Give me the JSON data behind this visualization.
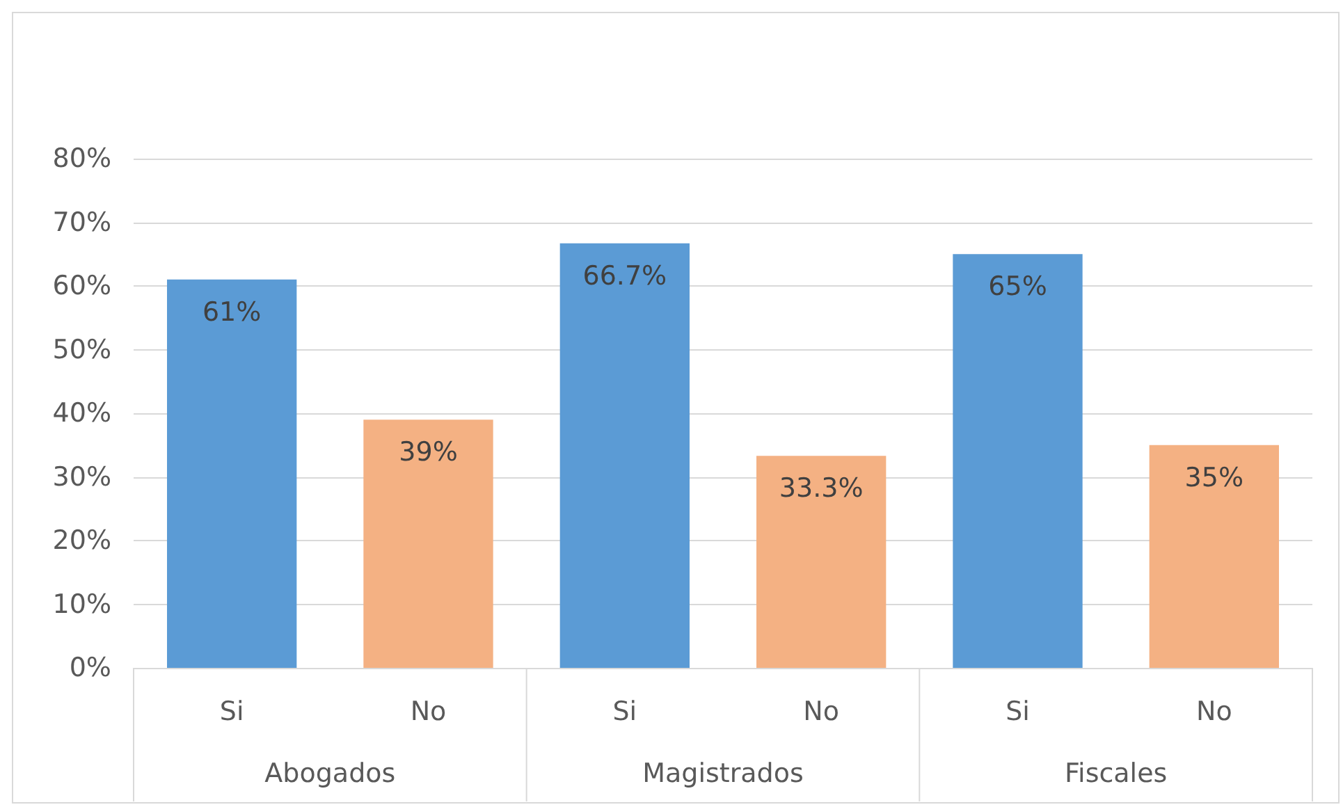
{
  "chart_data": {
    "type": "bar",
    "categories": [
      "Si",
      "No",
      "Si",
      "No",
      "Si",
      "No"
    ],
    "values": [
      61,
      39,
      66.7,
      33.3,
      65,
      35
    ],
    "colors": [
      "#5b9bd5",
      "#f4b183",
      "#5b9bd5",
      "#f4b183",
      "#5b9bd5",
      "#f4b183"
    ],
    "value_labels": [
      "61%",
      "39%",
      "66.7%",
      "33.3%",
      "65%",
      "35%"
    ],
    "annotations": [
      "Abogados",
      "Magistrados",
      "Fiscales"
    ],
    "ylim": [
      0,
      80
    ],
    "yticks": [
      {
        "value": 0,
        "label": "0%"
      },
      {
        "value": 10,
        "label": "10%"
      },
      {
        "value": 20,
        "label": "20%"
      },
      {
        "value": 30,
        "label": "30%"
      },
      {
        "value": 40,
        "label": "40%"
      },
      {
        "value": 50,
        "label": "50%"
      },
      {
        "value": 60,
        "label": "60%"
      },
      {
        "value": 70,
        "label": "70%"
      },
      {
        "value": 80,
        "label": "80%"
      }
    ],
    "grid": "y"
  }
}
